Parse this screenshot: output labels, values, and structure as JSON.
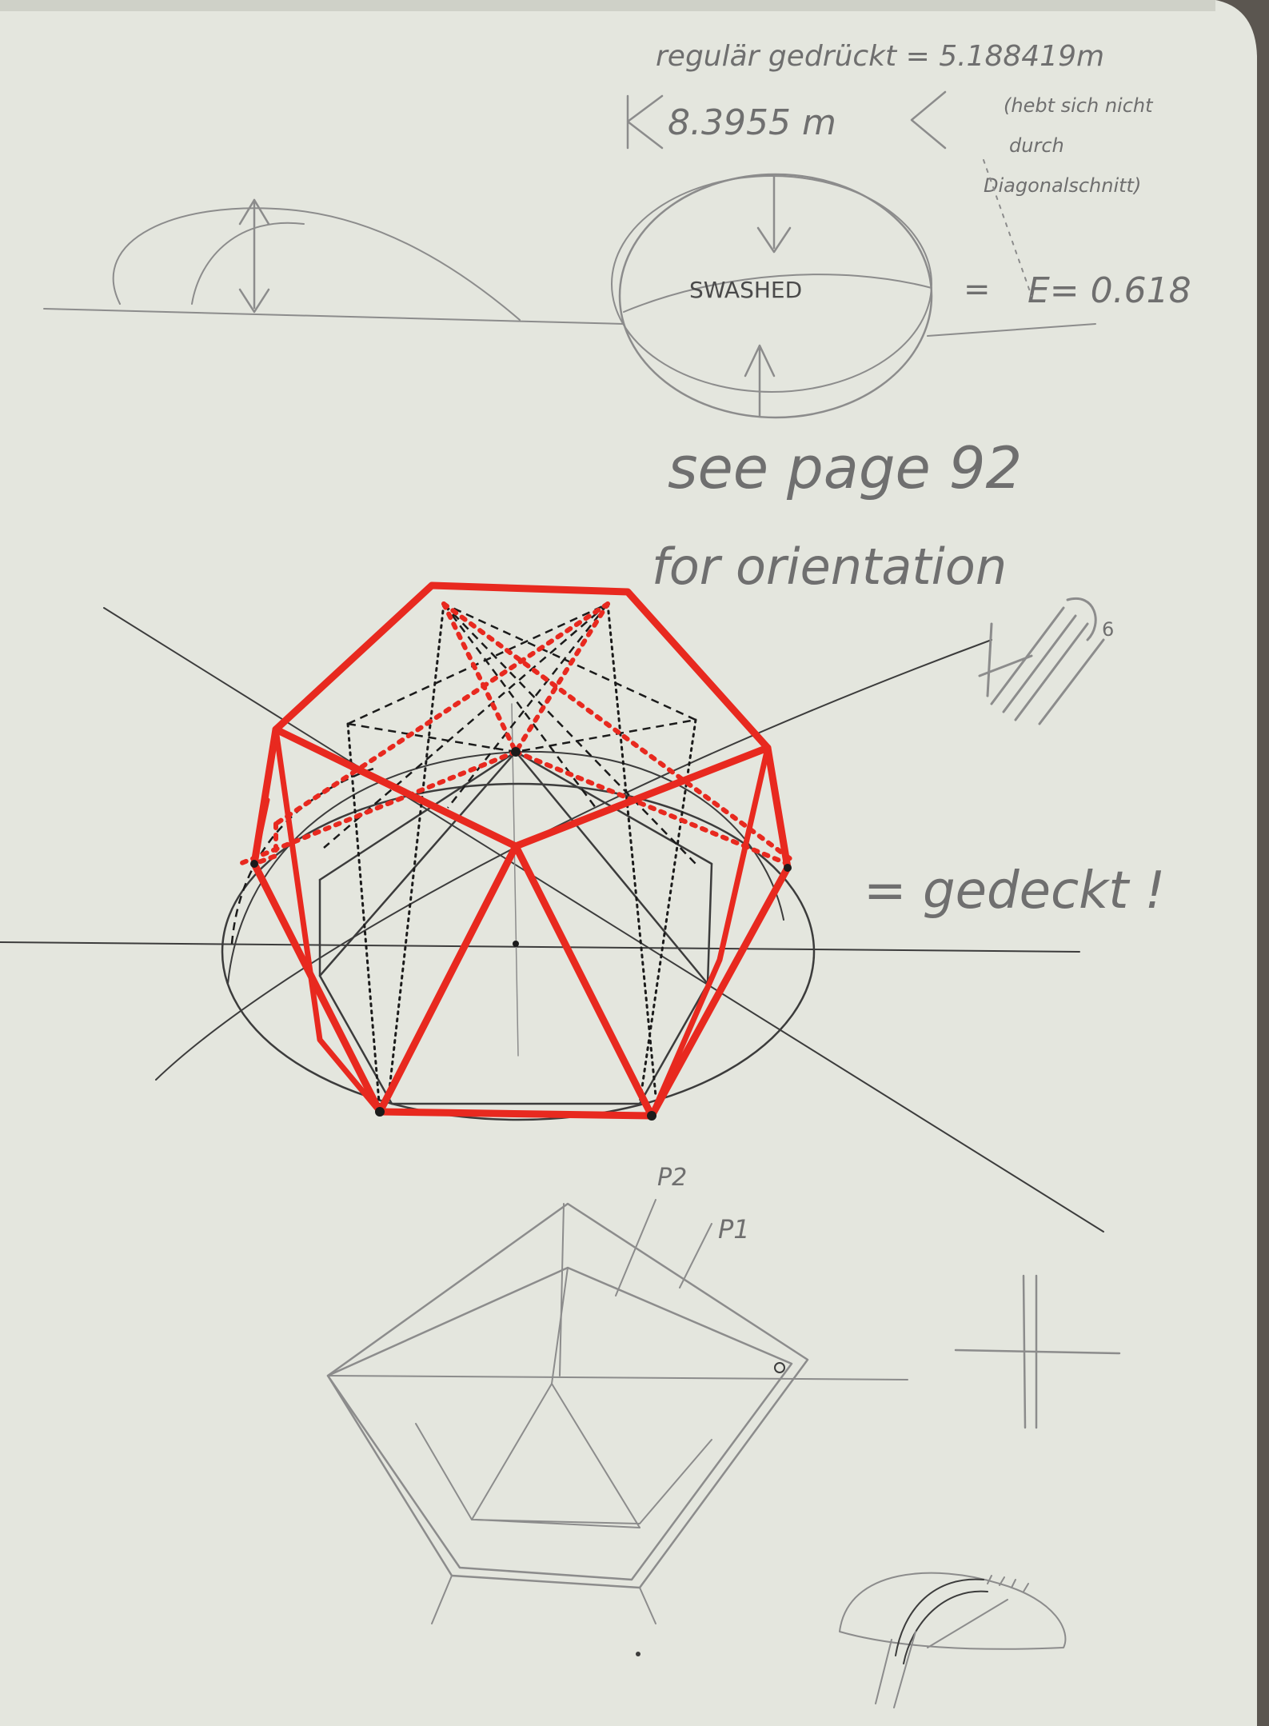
{
  "notes": {
    "line1": "regulär gedrückt = 5.188419m",
    "line2": "(hebt sich nicht",
    "line3": "durch",
    "line4": "Diagonalschnitt)",
    "width": "8.3955 m",
    "swashed": "SWASHED",
    "equals": "=",
    "ratio": "E= 0.618",
    "see_page_1": "see page 92",
    "see_page_2": "for orientation",
    "result": "= gedeckt !",
    "p2": "P2",
    "p1": "P1",
    "frac_sup": "6"
  },
  "colors": {
    "paper": "#e4e6de",
    "pencil": "#8c8c8c",
    "ink": "#1b1b1b",
    "marker_red": "#e8291f",
    "background": "#5b5650"
  }
}
